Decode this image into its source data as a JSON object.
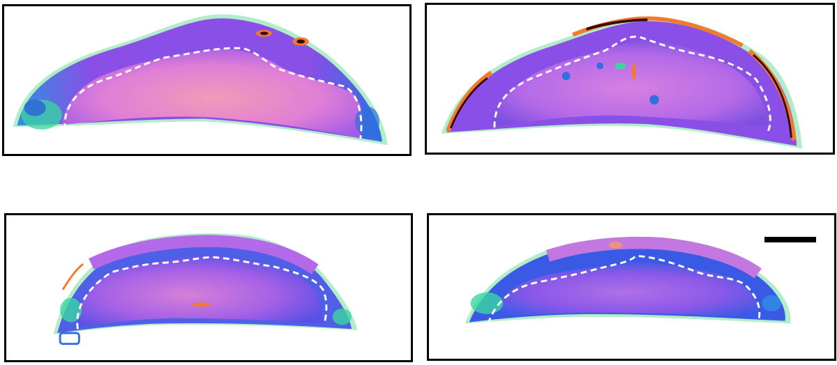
{
  "figure": {
    "panels": [
      {
        "id": "panel-top-left"
      },
      {
        "id": "panel-top-right"
      },
      {
        "id": "panel-bottom-left"
      },
      {
        "id": "panel-bottom-right"
      }
    ],
    "colors": {
      "border": "#000000",
      "dashed_outline": "#ffffff",
      "core": "#e07fd6",
      "core_warm": "#f08fb0",
      "cortex_blue": "#2f6fe0",
      "cortex_violet": "#8a4fe6",
      "edge_green": "#7fe0a0",
      "edge_cyan": "#3ad6e6",
      "hot_orange": "#f07a30",
      "hot_dark": "#3a0a0a",
      "scale_bar": "#000000"
    }
  }
}
